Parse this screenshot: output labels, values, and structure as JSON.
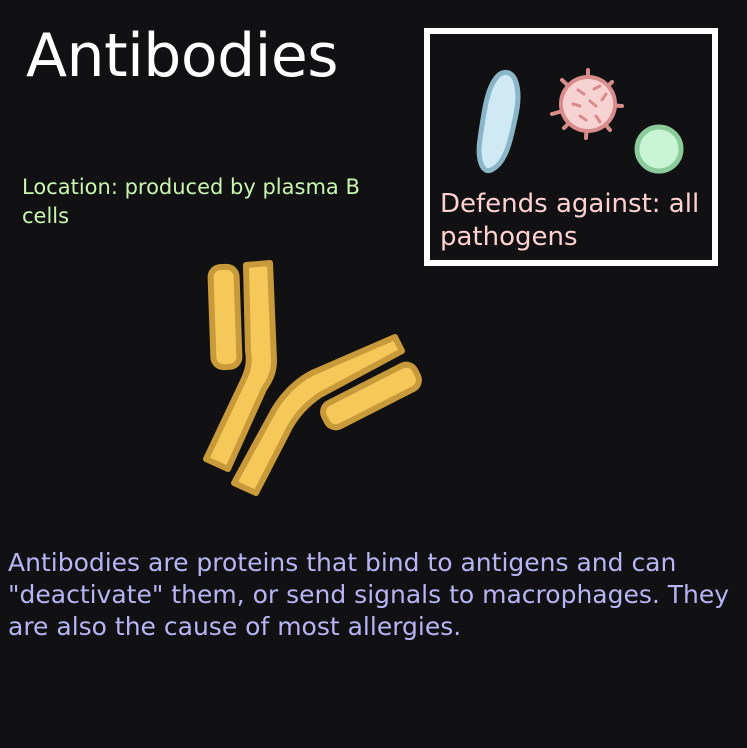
{
  "title": "Antibodies",
  "location": "Location: produced by plasma B cells",
  "defends": "Defends against: all pathogens",
  "description": "Antibodies are proteins that bind to antigens and can \"deactivate\" them, or send signals to macrophages. They are also the cause of most allergies.",
  "colors": {
    "background": "#111113",
    "title": "#ffffff",
    "location": "#c9f5b0",
    "defends": "#ffd1d1",
    "description": "#b8b4f5",
    "box_border": "#ffffff",
    "antibody_fill": "#f5c85a",
    "antibody_stroke": "#c99a3a",
    "bacillus_fill": "#cfe9f5",
    "bacillus_stroke": "#8bb6c8",
    "virus_fill": "#f7d2d2",
    "virus_stroke": "#d98c8c",
    "cocci_fill": "#c9f5d4",
    "cocci_stroke": "#8ccc9c"
  },
  "icons": [
    "bacillus-icon",
    "virus-icon",
    "cocci-icon",
    "antibody-icon"
  ]
}
